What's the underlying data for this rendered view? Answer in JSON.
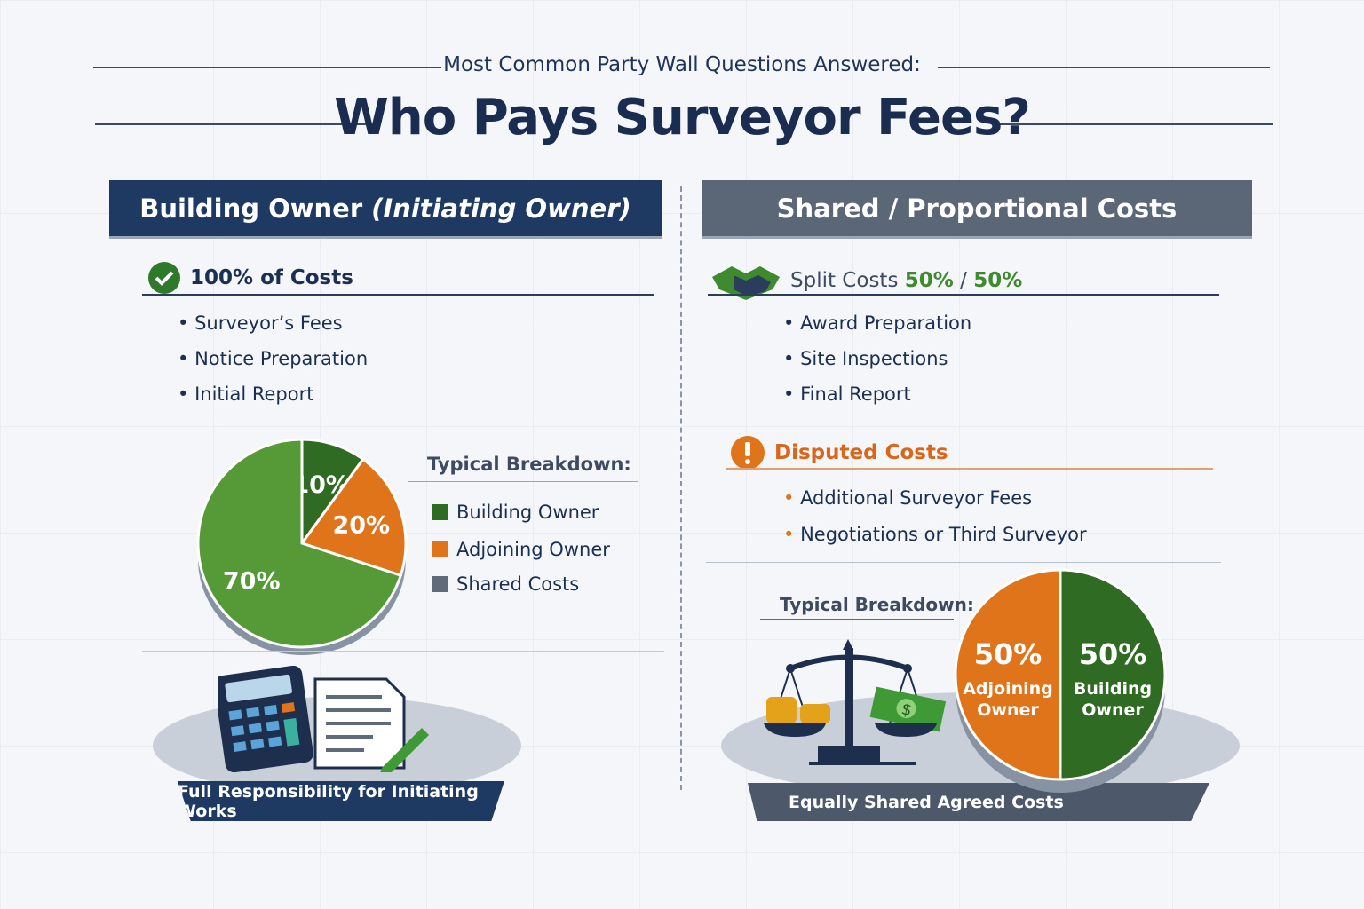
{
  "header": {
    "subtitle": "Most Common Party Wall Questions Answered:",
    "title": "Who Pays Surveyor Fees?"
  },
  "left": {
    "heading": "Building Owner",
    "heading_italic": "(Initiating Owner)",
    "section_title": "100% of Costs",
    "items": [
      "Surveyor’s Fees",
      "Notice Preparation",
      "Initial Report"
    ],
    "breakdown_title": "Typical Breakdown:",
    "caption": "Full Responsibility for Initiating Works"
  },
  "right": {
    "heading": "Shared / Proportional Costs",
    "split_prefix": "Split Costs",
    "split_a": "50%",
    "split_sep": "/",
    "split_b": "50%",
    "items": [
      "Award Preparation",
      "Site Inspections",
      "Final Report"
    ],
    "disputed_title": "Disputed Costs",
    "disputed_items": [
      "Additional Surveyor Fees",
      "Negotiations or Third Surveyor"
    ],
    "breakdown_title": "Typical Breakdown:",
    "caption": "Equally Shared Agreed Costs"
  },
  "colors": {
    "navy": "#1e3a63",
    "slate": "#5b6676",
    "dark_green": "#2f6b22",
    "green": "#559a36",
    "orange": "#e0741b",
    "gray": "#5f6b7a"
  },
  "chart_data": [
    {
      "type": "pie",
      "title": "Typical Breakdown:",
      "slices": [
        {
          "label": "10%",
          "value": 10,
          "color": "#2f6b22"
        },
        {
          "label": "20%",
          "value": 20,
          "color": "#e0741b"
        },
        {
          "label": "70%",
          "value": 70,
          "color": "#559a36"
        }
      ],
      "legend": [
        {
          "name": "Building Owner",
          "color": "#2f6b22"
        },
        {
          "name": "Adjoining Owner",
          "color": "#e0741b"
        },
        {
          "name": "Shared Costs",
          "color": "#5f6b7a"
        }
      ]
    },
    {
      "type": "pie",
      "title": "Typical Breakdown:",
      "slices": [
        {
          "label": "50%",
          "name": "Building Owner",
          "value": 50,
          "color": "#2f6b22"
        },
        {
          "label": "50%",
          "name": "Adjoining Owner",
          "value": 50,
          "color": "#e0741b"
        }
      ]
    }
  ]
}
